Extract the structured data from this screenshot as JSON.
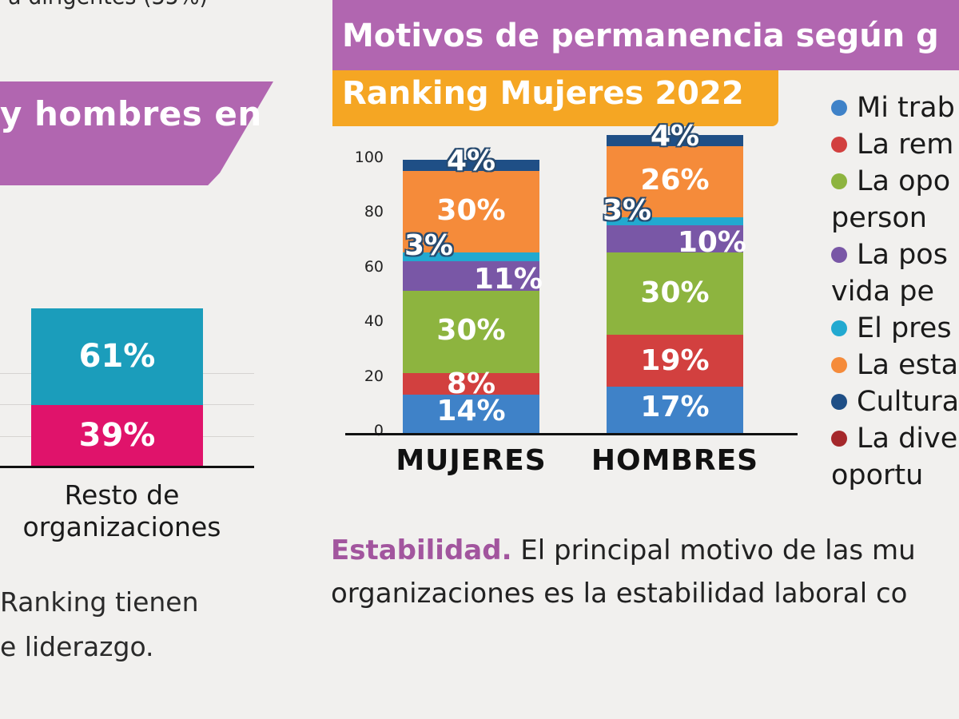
{
  "left_panel": {
    "top_cut_text": "a  dirigentes  (35%)",
    "banner_text": "y hombres en",
    "bar": {
      "category": "Resto de organizaciones",
      "category_lines": [
        "Resto de",
        "organizaciones"
      ],
      "segments": [
        {
          "name": "Mujeres",
          "value": 39,
          "label": "39%",
          "color": "#e0136b"
        },
        {
          "name": "Hombres",
          "value": 61,
          "label": "61%",
          "color": "#1b9dbb"
        }
      ]
    },
    "note_lines": [
      "Ranking tienen",
      "e liderazgo."
    ]
  },
  "header": {
    "title": "Motivos de permanencia según g",
    "subtitle": "Ranking Mujeres 2022",
    "title_color": "#b166b0",
    "subtitle_color": "#f5a623"
  },
  "legend": [
    {
      "label": "Mi trab",
      "color": "#3f82c8"
    },
    {
      "label": "La rem",
      "color": "#d2403f"
    },
    {
      "label": "La opo",
      "label2": "person",
      "color": "#8db43f"
    },
    {
      "label": "La pos",
      "label2": "vida pe",
      "color": "#7957a6"
    },
    {
      "label": "El pres",
      "color": "#22a9d0"
    },
    {
      "label": "La esta",
      "color": "#f58b3a"
    },
    {
      "label": "Cultura",
      "color": "#1f4f86"
    },
    {
      "label": "La dive",
      "label2": "oportu",
      "color": "#a5282b"
    }
  ],
  "caption": {
    "lead": "Estabilidad.",
    "line1_rest": " El principal motivo de las mu",
    "line2": "organizaciones es la estabilidad laboral co"
  },
  "chart_data": {
    "type": "bar",
    "stacked": true,
    "title": "Motivos de permanencia según g",
    "subtitle": "Ranking Mujeres 2022",
    "categories": [
      "MUJERES",
      "HOMBRES"
    ],
    "ylim": [
      0,
      100
    ],
    "yticks": [
      0,
      20,
      40,
      60,
      80,
      100
    ],
    "xlabel": "",
    "ylabel": "",
    "grid": false,
    "legend_position": "right",
    "series": [
      {
        "name": "Mi trab",
        "color": "#3f82c8",
        "values": [
          14,
          17
        ],
        "labels": [
          "14%",
          "17%"
        ]
      },
      {
        "name": "La rem",
        "color": "#d2403f",
        "values": [
          8,
          19
        ],
        "labels": [
          "8%",
          "19%"
        ]
      },
      {
        "name": "La opo person",
        "color": "#8db43f",
        "values": [
          30,
          30
        ],
        "labels": [
          "30%",
          "30%"
        ]
      },
      {
        "name": "La pos vida pe",
        "color": "#7957a6",
        "values": [
          11,
          10
        ],
        "labels": [
          "11%",
          "10%"
        ]
      },
      {
        "name": "El pres",
        "color": "#22a9d0",
        "values": [
          3,
          3
        ],
        "labels": [
          "3%",
          "3%"
        ]
      },
      {
        "name": "La esta",
        "color": "#f58b3a",
        "values": [
          30,
          26
        ],
        "labels": [
          "30%",
          "26%"
        ]
      },
      {
        "name": "Cultura",
        "color": "#1f4f86",
        "values": [
          4,
          4
        ],
        "labels": [
          "4%",
          "4%"
        ]
      }
    ]
  }
}
